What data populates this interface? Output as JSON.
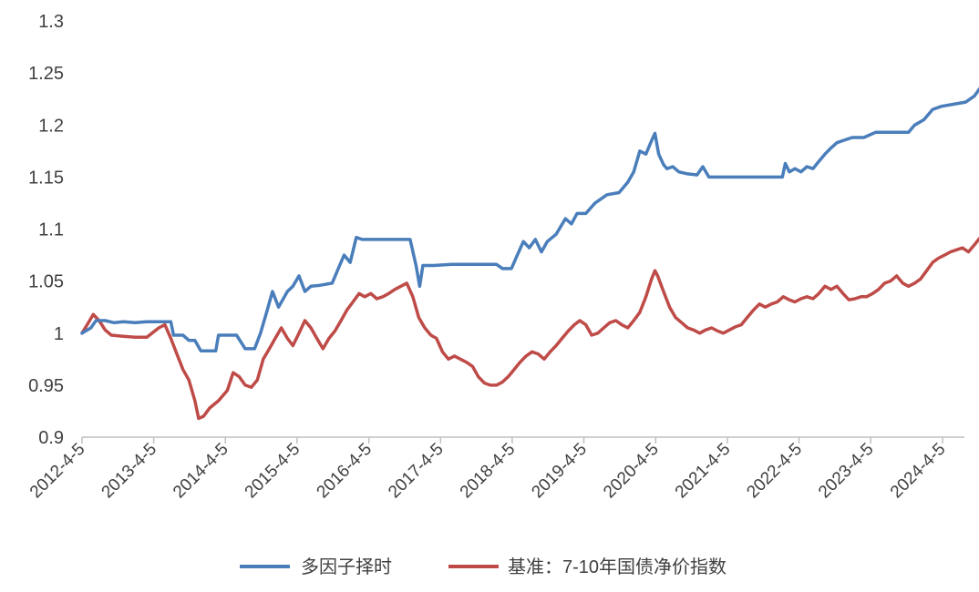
{
  "colors": {
    "multi_factor": "#4a7ebb",
    "benchmark": "#be4b48",
    "axis": "#bfbfbf",
    "text": "#404040"
  },
  "chart_data": {
    "type": "line",
    "title": "",
    "xlabel": "",
    "ylabel": "",
    "x_axis": "date",
    "xlim": [
      "2012-04-05",
      "2024-11-15"
    ],
    "ylim": [
      0.9,
      1.3
    ],
    "y_ticks": [
      "0.9",
      "0.95",
      "1",
      "1.05",
      "1.1",
      "1.15",
      "1.2",
      "1.25",
      "1.3"
    ],
    "x_ticks": [
      {
        "date": "2012-04-05",
        "label": "2012-4-5"
      },
      {
        "date": "2013-04-05",
        "label": "2013-4-5"
      },
      {
        "date": "2014-04-05",
        "label": "2014-4-5"
      },
      {
        "date": "2015-04-05",
        "label": "2015-4-5"
      },
      {
        "date": "2016-04-05",
        "label": "2016-4-5"
      },
      {
        "date": "2017-04-05",
        "label": "2017-4-5"
      },
      {
        "date": "2018-04-05",
        "label": "2018-4-5"
      },
      {
        "date": "2019-04-05",
        "label": "2019-4-5"
      },
      {
        "date": "2020-04-05",
        "label": "2020-4-5"
      },
      {
        "date": "2021-04-05",
        "label": "2021-4-5"
      },
      {
        "date": "2022-04-05",
        "label": "2022-4-5"
      },
      {
        "date": "2023-04-05",
        "label": "2023-4-5"
      },
      {
        "date": "2024-04-05",
        "label": "2024-4-5"
      }
    ],
    "grid": false,
    "legend_position": "bottom",
    "series": [
      {
        "name": "多因子择时",
        "color": "#4a7ebb",
        "points": [
          [
            "2012-04-05",
            1.0
          ],
          [
            "2012-05-20",
            1.005
          ],
          [
            "2012-06-15",
            1.012
          ],
          [
            "2012-08-01",
            1.012
          ],
          [
            "2012-09-15",
            1.01
          ],
          [
            "2012-11-01",
            1.011
          ],
          [
            "2013-01-01",
            1.01
          ],
          [
            "2013-03-01",
            1.011
          ],
          [
            "2013-05-01",
            1.011
          ],
          [
            "2013-07-01",
            1.011
          ],
          [
            "2013-07-15",
            0.998
          ],
          [
            "2013-09-01",
            0.998
          ],
          [
            "2013-10-01",
            0.993
          ],
          [
            "2013-11-01",
            0.993
          ],
          [
            "2013-12-01",
            0.983
          ],
          [
            "2014-02-15",
            0.983
          ],
          [
            "2014-03-01",
            0.998
          ],
          [
            "2014-06-01",
            0.998
          ],
          [
            "2014-07-15",
            0.985
          ],
          [
            "2014-09-01",
            0.985
          ],
          [
            "2014-10-01",
            1.0
          ],
          [
            "2014-11-01",
            1.02
          ],
          [
            "2014-12-01",
            1.04
          ],
          [
            "2015-01-01",
            1.025
          ],
          [
            "2015-02-15",
            1.04
          ],
          [
            "2015-03-15",
            1.045
          ],
          [
            "2015-04-15",
            1.055
          ],
          [
            "2015-05-15",
            1.04
          ],
          [
            "2015-06-15",
            1.045
          ],
          [
            "2015-08-01",
            1.046
          ],
          [
            "2015-10-01",
            1.048
          ],
          [
            "2015-11-01",
            1.062
          ],
          [
            "2015-12-01",
            1.075
          ],
          [
            "2016-01-01",
            1.068
          ],
          [
            "2016-02-01",
            1.092
          ],
          [
            "2016-03-01",
            1.09
          ],
          [
            "2016-06-01",
            1.09
          ],
          [
            "2016-09-01",
            1.09
          ],
          [
            "2016-11-01",
            1.09
          ],
          [
            "2016-12-01",
            1.065
          ],
          [
            "2016-12-20",
            1.045
          ],
          [
            "2017-01-05",
            1.065
          ],
          [
            "2017-03-01",
            1.065
          ],
          [
            "2017-06-01",
            1.066
          ],
          [
            "2017-09-01",
            1.066
          ],
          [
            "2017-12-01",
            1.066
          ],
          [
            "2018-01-15",
            1.066
          ],
          [
            "2018-02-15",
            1.062
          ],
          [
            "2018-04-01",
            1.062
          ],
          [
            "2018-05-01",
            1.075
          ],
          [
            "2018-06-01",
            1.088
          ],
          [
            "2018-07-01",
            1.082
          ],
          [
            "2018-08-01",
            1.09
          ],
          [
            "2018-09-01",
            1.078
          ],
          [
            "2018-10-01",
            1.088
          ],
          [
            "2018-11-15",
            1.095
          ],
          [
            "2019-01-01",
            1.11
          ],
          [
            "2019-02-01",
            1.105
          ],
          [
            "2019-03-01",
            1.115
          ],
          [
            "2019-04-15",
            1.115
          ],
          [
            "2019-06-01",
            1.125
          ],
          [
            "2019-08-01",
            1.133
          ],
          [
            "2019-10-01",
            1.135
          ],
          [
            "2019-11-15",
            1.145
          ],
          [
            "2019-12-15",
            1.155
          ],
          [
            "2020-01-15",
            1.175
          ],
          [
            "2020-02-15",
            1.172
          ],
          [
            "2020-03-15",
            1.185
          ],
          [
            "2020-04-01",
            1.192
          ],
          [
            "2020-04-20",
            1.172
          ],
          [
            "2020-05-15",
            1.162
          ],
          [
            "2020-06-01",
            1.158
          ],
          [
            "2020-07-01",
            1.16
          ],
          [
            "2020-08-01",
            1.155
          ],
          [
            "2020-09-15",
            1.153
          ],
          [
            "2020-11-01",
            1.152
          ],
          [
            "2020-12-01",
            1.16
          ],
          [
            "2021-01-01",
            1.15
          ],
          [
            "2021-03-01",
            1.15
          ],
          [
            "2021-06-01",
            1.15
          ],
          [
            "2021-09-01",
            1.15
          ],
          [
            "2021-12-01",
            1.15
          ],
          [
            "2022-01-10",
            1.15
          ],
          [
            "2022-01-25",
            1.163
          ],
          [
            "2022-02-15",
            1.155
          ],
          [
            "2022-03-15",
            1.158
          ],
          [
            "2022-04-15",
            1.155
          ],
          [
            "2022-05-15",
            1.16
          ],
          [
            "2022-06-15",
            1.158
          ],
          [
            "2022-07-15",
            1.165
          ],
          [
            "2022-08-15",
            1.172
          ],
          [
            "2022-09-15",
            1.178
          ],
          [
            "2022-10-15",
            1.183
          ],
          [
            "2022-11-15",
            1.185
          ],
          [
            "2023-01-01",
            1.188
          ],
          [
            "2023-03-01",
            1.188
          ],
          [
            "2023-05-01",
            1.193
          ],
          [
            "2023-07-01",
            1.193
          ],
          [
            "2023-09-01",
            1.193
          ],
          [
            "2023-10-15",
            1.193
          ],
          [
            "2023-11-15",
            1.2
          ],
          [
            "2024-01-01",
            1.205
          ],
          [
            "2024-02-15",
            1.215
          ],
          [
            "2024-04-01",
            1.218
          ],
          [
            "2024-06-01",
            1.22
          ],
          [
            "2024-08-01",
            1.222
          ],
          [
            "2024-09-15",
            1.228
          ],
          [
            "2024-10-15",
            1.236
          ]
        ]
      },
      {
        "name": "基准：7-10年国债净价指数",
        "color": "#be4b48",
        "points": [
          [
            "2012-04-05",
            1.0
          ],
          [
            "2012-05-01",
            1.008
          ],
          [
            "2012-06-01",
            1.018
          ],
          [
            "2012-07-01",
            1.012
          ],
          [
            "2012-08-01",
            1.003
          ],
          [
            "2012-09-01",
            0.998
          ],
          [
            "2012-11-01",
            0.997
          ],
          [
            "2013-01-01",
            0.996
          ],
          [
            "2013-03-01",
            0.996
          ],
          [
            "2013-05-01",
            1.005
          ],
          [
            "2013-06-01",
            1.008
          ],
          [
            "2013-07-01",
            0.995
          ],
          [
            "2013-08-01",
            0.98
          ],
          [
            "2013-09-01",
            0.965
          ],
          [
            "2013-10-01",
            0.955
          ],
          [
            "2013-11-01",
            0.935
          ],
          [
            "2013-11-20",
            0.918
          ],
          [
            "2013-12-15",
            0.92
          ],
          [
            "2014-01-15",
            0.928
          ],
          [
            "2014-03-01",
            0.935
          ],
          [
            "2014-04-15",
            0.945
          ],
          [
            "2014-05-15",
            0.962
          ],
          [
            "2014-06-15",
            0.958
          ],
          [
            "2014-07-15",
            0.95
          ],
          [
            "2014-08-15",
            0.948
          ],
          [
            "2014-09-15",
            0.955
          ],
          [
            "2014-10-15",
            0.975
          ],
          [
            "2014-11-15",
            0.985
          ],
          [
            "2014-12-15",
            0.995
          ],
          [
            "2015-01-15",
            1.005
          ],
          [
            "2015-02-15",
            0.995
          ],
          [
            "2015-03-15",
            0.988
          ],
          [
            "2015-04-15",
            1.0
          ],
          [
            "2015-05-15",
            1.012
          ],
          [
            "2015-06-15",
            1.005
          ],
          [
            "2015-07-15",
            0.995
          ],
          [
            "2015-08-15",
            0.985
          ],
          [
            "2015-09-15",
            0.995
          ],
          [
            "2015-10-15",
            1.002
          ],
          [
            "2015-11-15",
            1.012
          ],
          [
            "2015-12-15",
            1.022
          ],
          [
            "2016-01-15",
            1.03
          ],
          [
            "2016-02-15",
            1.038
          ],
          [
            "2016-03-15",
            1.035
          ],
          [
            "2016-04-15",
            1.038
          ],
          [
            "2016-05-15",
            1.033
          ],
          [
            "2016-06-15",
            1.035
          ],
          [
            "2016-07-15",
            1.038
          ],
          [
            "2016-08-15",
            1.042
          ],
          [
            "2016-09-15",
            1.045
          ],
          [
            "2016-10-15",
            1.048
          ],
          [
            "2016-11-15",
            1.035
          ],
          [
            "2016-12-15",
            1.015
          ],
          [
            "2017-01-15",
            1.005
          ],
          [
            "2017-02-15",
            0.998
          ],
          [
            "2017-03-15",
            0.995
          ],
          [
            "2017-04-15",
            0.982
          ],
          [
            "2017-05-15",
            0.975
          ],
          [
            "2017-06-15",
            0.978
          ],
          [
            "2017-07-15",
            0.975
          ],
          [
            "2017-08-15",
            0.972
          ],
          [
            "2017-09-15",
            0.968
          ],
          [
            "2017-10-15",
            0.958
          ],
          [
            "2017-11-15",
            0.952
          ],
          [
            "2017-12-15",
            0.95
          ],
          [
            "2018-01-15",
            0.95
          ],
          [
            "2018-02-15",
            0.953
          ],
          [
            "2018-03-15",
            0.958
          ],
          [
            "2018-04-15",
            0.965
          ],
          [
            "2018-05-15",
            0.972
          ],
          [
            "2018-06-15",
            0.978
          ],
          [
            "2018-07-15",
            0.982
          ],
          [
            "2018-08-15",
            0.98
          ],
          [
            "2018-09-15",
            0.975
          ],
          [
            "2018-10-15",
            0.982
          ],
          [
            "2018-11-15",
            0.988
          ],
          [
            "2018-12-15",
            0.995
          ],
          [
            "2019-01-15",
            1.002
          ],
          [
            "2019-02-15",
            1.008
          ],
          [
            "2019-03-15",
            1.012
          ],
          [
            "2019-04-15",
            1.008
          ],
          [
            "2019-05-15",
            0.998
          ],
          [
            "2019-06-15",
            1.0
          ],
          [
            "2019-07-15",
            1.005
          ],
          [
            "2019-08-15",
            1.01
          ],
          [
            "2019-09-15",
            1.012
          ],
          [
            "2019-10-15",
            1.008
          ],
          [
            "2019-11-15",
            1.005
          ],
          [
            "2019-12-15",
            1.012
          ],
          [
            "2020-01-15",
            1.02
          ],
          [
            "2020-02-15",
            1.035
          ],
          [
            "2020-03-15",
            1.052
          ],
          [
            "2020-04-01",
            1.06
          ],
          [
            "2020-04-15",
            1.055
          ],
          [
            "2020-05-15",
            1.04
          ],
          [
            "2020-06-15",
            1.025
          ],
          [
            "2020-07-15",
            1.015
          ],
          [
            "2020-08-15",
            1.01
          ],
          [
            "2020-09-15",
            1.005
          ],
          [
            "2020-10-15",
            1.003
          ],
          [
            "2020-11-15",
            1.0
          ],
          [
            "2020-12-15",
            1.003
          ],
          [
            "2021-01-15",
            1.005
          ],
          [
            "2021-02-15",
            1.002
          ],
          [
            "2021-03-15",
            1.0
          ],
          [
            "2021-04-15",
            1.003
          ],
          [
            "2021-05-15",
            1.006
          ],
          [
            "2021-06-15",
            1.008
          ],
          [
            "2021-07-15",
            1.015
          ],
          [
            "2021-08-15",
            1.022
          ],
          [
            "2021-09-15",
            1.028
          ],
          [
            "2021-10-15",
            1.025
          ],
          [
            "2021-11-15",
            1.028
          ],
          [
            "2021-12-15",
            1.03
          ],
          [
            "2022-01-15",
            1.035
          ],
          [
            "2022-02-15",
            1.032
          ],
          [
            "2022-03-15",
            1.03
          ],
          [
            "2022-04-15",
            1.033
          ],
          [
            "2022-05-15",
            1.035
          ],
          [
            "2022-06-15",
            1.033
          ],
          [
            "2022-07-15",
            1.038
          ],
          [
            "2022-08-15",
            1.045
          ],
          [
            "2022-09-15",
            1.042
          ],
          [
            "2022-10-15",
            1.045
          ],
          [
            "2022-11-15",
            1.038
          ],
          [
            "2022-12-15",
            1.032
          ],
          [
            "2023-01-15",
            1.033
          ],
          [
            "2023-02-15",
            1.035
          ],
          [
            "2023-03-15",
            1.035
          ],
          [
            "2023-04-15",
            1.038
          ],
          [
            "2023-05-15",
            1.042
          ],
          [
            "2023-06-15",
            1.048
          ],
          [
            "2023-07-15",
            1.05
          ],
          [
            "2023-08-15",
            1.055
          ],
          [
            "2023-09-15",
            1.048
          ],
          [
            "2023-10-15",
            1.045
          ],
          [
            "2023-11-15",
            1.048
          ],
          [
            "2023-12-15",
            1.052
          ],
          [
            "2024-01-15",
            1.06
          ],
          [
            "2024-02-15",
            1.068
          ],
          [
            "2024-03-15",
            1.072
          ],
          [
            "2024-04-15",
            1.075
          ],
          [
            "2024-05-15",
            1.078
          ],
          [
            "2024-06-15",
            1.08
          ],
          [
            "2024-07-15",
            1.082
          ],
          [
            "2024-08-15",
            1.078
          ],
          [
            "2024-09-15",
            1.085
          ],
          [
            "2024-10-15",
            1.092
          ]
        ]
      }
    ]
  }
}
